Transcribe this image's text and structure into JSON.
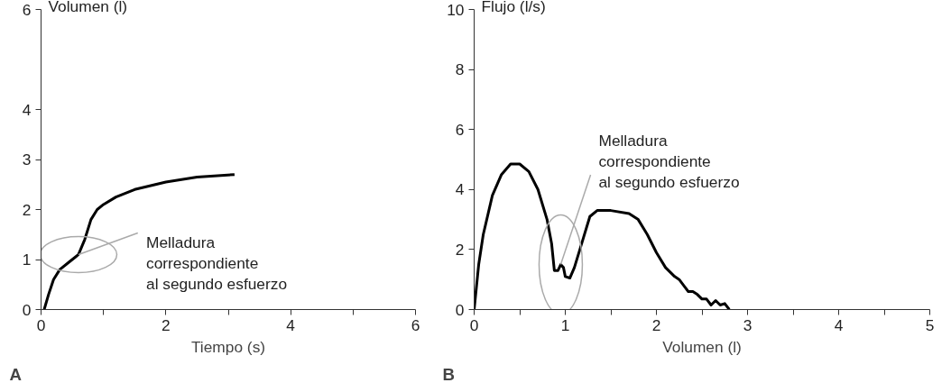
{
  "chart_data": [
    {
      "type": "line",
      "title": "A",
      "xlabel": "Tiempo (s)",
      "ylabel": "Volumen (l)",
      "x": [
        0.05,
        0.12,
        0.2,
        0.3,
        0.45,
        0.55,
        0.6,
        0.65,
        0.7,
        0.8,
        0.9,
        1.0,
        1.2,
        1.5,
        2.0,
        2.5,
        3.1
      ],
      "series": [
        {
          "color": "#000000",
          "values": [
            0,
            0.3,
            0.6,
            0.8,
            0.95,
            1.05,
            1.1,
            1.25,
            1.4,
            1.8,
            2.0,
            2.1,
            2.25,
            2.4,
            2.55,
            2.65,
            2.7
          ]
        }
      ],
      "xlim": [
        0,
        6
      ],
      "ylim": [
        0,
        6
      ],
      "xticks": [
        0,
        {
          "value": 1,
          "label": null
        },
        2,
        {
          "value": 3,
          "label": null
        },
        4,
        {
          "value": 5,
          "label": null
        },
        6
      ],
      "yticks": [
        0,
        1,
        2,
        3,
        4,
        6
      ],
      "annotations": [
        {
          "text": "Melladura\ncorrespondiente\nal segundo esfuerzo",
          "x": 0.6,
          "y": 1.1
        }
      ],
      "grid": false,
      "marker": "none",
      "line_style": "solid"
    },
    {
      "type": "line",
      "title": "B",
      "xlabel": "Volumen (l)",
      "ylabel": "Flujo (l/s)",
      "x": [
        0,
        0.05,
        0.1,
        0.2,
        0.3,
        0.4,
        0.5,
        0.6,
        0.7,
        0.8,
        0.85,
        0.88,
        0.92,
        0.95,
        0.98,
        1.0,
        1.05,
        1.1,
        1.2,
        1.27,
        1.35,
        1.5,
        1.7,
        1.8,
        1.9,
        2.0,
        2.1,
        2.2,
        2.25,
        2.3,
        2.35,
        2.4,
        2.45,
        2.5,
        2.55,
        2.6,
        2.65,
        2.7,
        2.75,
        2.8
      ],
      "series": [
        {
          "color": "#000000",
          "values": [
            0,
            1.5,
            2.5,
            3.8,
            4.5,
            4.85,
            4.85,
            4.6,
            4.0,
            3.0,
            2.2,
            1.3,
            1.3,
            1.5,
            1.4,
            1.1,
            1.05,
            1.4,
            2.4,
            3.1,
            3.3,
            3.3,
            3.2,
            3.0,
            2.5,
            1.9,
            1.4,
            1.1,
            1.0,
            0.8,
            0.6,
            0.6,
            0.5,
            0.35,
            0.35,
            0.15,
            0.3,
            0.15,
            0.2,
            0.0
          ]
        }
      ],
      "xlim": [
        0,
        5
      ],
      "ylim": [
        0,
        10
      ],
      "xticks": [
        0,
        {
          "value": 0.5,
          "label": null
        },
        1,
        {
          "value": 1.5,
          "label": null
        },
        2,
        {
          "value": 2.5,
          "label": null
        },
        3,
        {
          "value": 3.5,
          "label": null
        },
        4,
        {
          "value": 4.5,
          "label": null
        },
        5
      ],
      "yticks": [
        0,
        2,
        4,
        6,
        8,
        10
      ],
      "annotations": [
        {
          "text": "Melladura\ncorrespondiente\nal segundo esfuerzo",
          "x": 0.95,
          "y": 1.5
        }
      ],
      "grid": false,
      "marker": "none",
      "line_style": "solid"
    }
  ]
}
